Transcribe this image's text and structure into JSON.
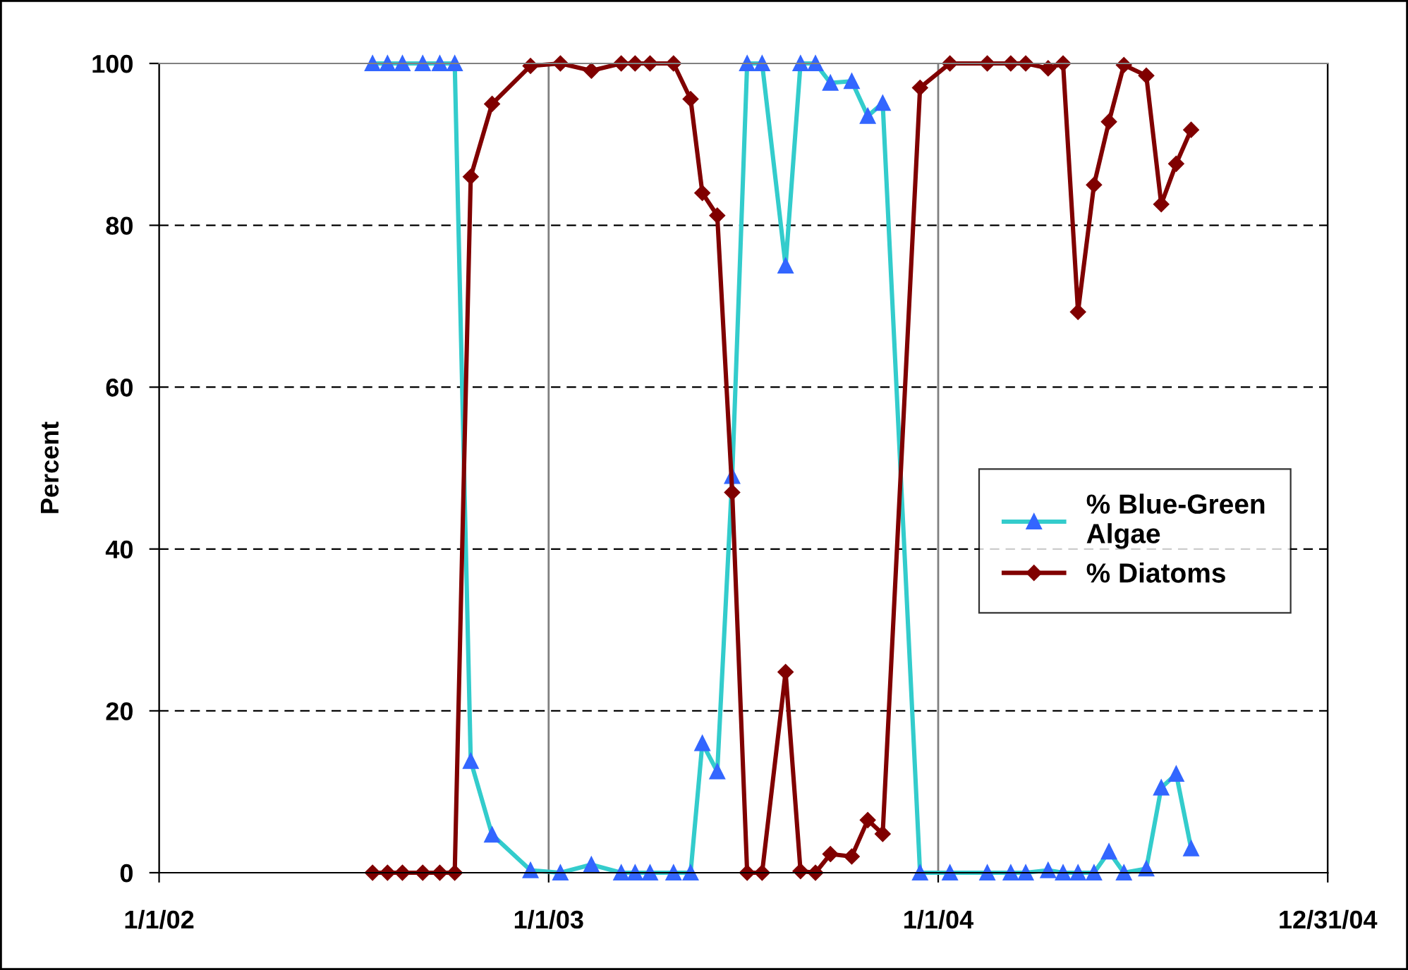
{
  "chart_data": {
    "type": "line",
    "ylabel": "Percent",
    "x": [
      "2002-07-20",
      "2002-08-03",
      "2002-08-17",
      "2002-09-05",
      "2002-09-21",
      "2002-10-05",
      "2002-10-20",
      "2002-11-09",
      "2002-12-15",
      "2003-01-12",
      "2003-02-10",
      "2003-03-10",
      "2003-03-23",
      "2003-04-06",
      "2003-04-28",
      "2003-05-14",
      "2003-05-25",
      "2003-06-08",
      "2003-06-22",
      "2003-07-06",
      "2003-07-20",
      "2003-08-11",
      "2003-08-25",
      "2003-09-08",
      "2003-09-22",
      "2003-10-12",
      "2003-10-27",
      "2003-11-10",
      "2003-12-15",
      "2004-01-12",
      "2004-02-16",
      "2004-03-09",
      "2004-03-23",
      "2004-04-13",
      "2004-04-27",
      "2004-05-11",
      "2004-05-26",
      "2004-06-09",
      "2004-06-23",
      "2004-07-14",
      "2004-07-28",
      "2004-08-11",
      "2004-08-25"
    ],
    "series": [
      {
        "name": "% Blue-Green Algae",
        "color": "#33cccc",
        "marker": "triangle",
        "values": [
          100,
          100,
          100,
          100,
          100,
          100,
          13.8,
          4.7,
          0.3,
          0,
          1,
          0,
          0,
          0,
          0,
          0,
          16,
          12.5,
          49,
          100,
          100,
          75,
          100,
          100,
          97.6,
          97.8,
          93.5,
          95.1,
          0,
          0,
          0,
          0,
          0,
          0.3,
          0,
          0,
          0,
          2.6,
          0,
          0.5,
          10.5,
          12.2,
          3
        ]
      },
      {
        "name": "% Diatoms",
        "color": "#800000",
        "marker": "diamond",
        "values": [
          0,
          0,
          0,
          0,
          0,
          0,
          86,
          95,
          99.7,
          100,
          99.1,
          100,
          100,
          100,
          100,
          95.6,
          84,
          81.2,
          47,
          0,
          0,
          24.8,
          0.2,
          0,
          2.3,
          2,
          6.5,
          4.8,
          97,
          100,
          100,
          100,
          100,
          99.4,
          100,
          69.3,
          85,
          92.8,
          99.8,
          98.5,
          82.6,
          87.6,
          91.8
        ]
      }
    ],
    "xlim": [
      "2002-01-01",
      "2004-12-31"
    ],
    "xticks": [
      {
        "value": "2002-01-01",
        "label": "1/1/02"
      },
      {
        "value": "2003-01-01",
        "label": "1/1/03"
      },
      {
        "value": "2004-01-01",
        "label": "1/1/04"
      },
      {
        "value": "2004-12-31",
        "label": "12/31/04"
      }
    ],
    "ylim": [
      0,
      100
    ],
    "yticks": [
      0,
      20,
      40,
      60,
      80,
      100
    ],
    "grid": true,
    "legend": "center right",
    "line_style": "solid"
  }
}
